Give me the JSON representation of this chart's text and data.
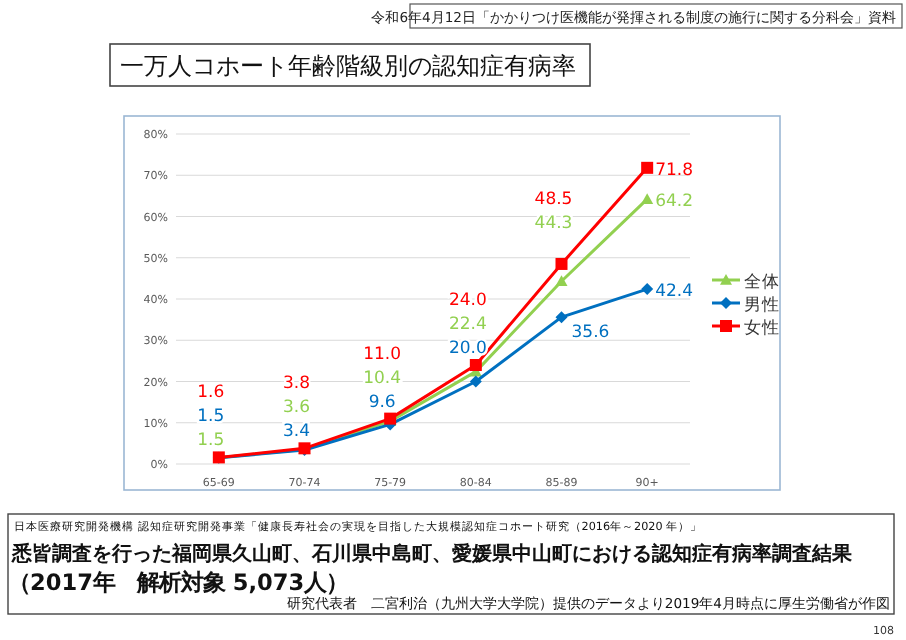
{
  "chart_data": {
    "type": "line",
    "title": "一万人コホート年齢階級別の認知症有病率",
    "categories": [
      "65-69",
      "70-74",
      "75-79",
      "80-84",
      "85-89",
      "90+"
    ],
    "series": [
      {
        "name": "全体",
        "color": "#92d050",
        "marker": "triangle",
        "values": [
          1.5,
          3.6,
          10.4,
          22.4,
          44.3,
          64.2
        ],
        "value_labels": [
          "1.5",
          "3.6",
          "10.4",
          "22.4",
          "44.3",
          "64.2"
        ]
      },
      {
        "name": "男性",
        "color": "#0070c0",
        "marker": "diamond",
        "values": [
          1.5,
          3.4,
          9.6,
          20.0,
          35.6,
          42.4
        ],
        "value_labels": [
          "1.5",
          "3.4",
          "9.6",
          "20.0",
          "35.6",
          "42.4"
        ]
      },
      {
        "name": "女性",
        "color": "#ff0000",
        "marker": "square",
        "values": [
          1.6,
          3.8,
          11.0,
          24.0,
          48.5,
          71.8
        ],
        "value_labels": [
          "1.6",
          "3.8",
          "11.0",
          "24.0",
          "48.5",
          "71.8"
        ]
      }
    ],
    "ylim": [
      0,
      80
    ],
    "yticks": [
      {
        "value": 0,
        "label": "0%"
      },
      {
        "value": 10,
        "label": "10%"
      },
      {
        "value": 20,
        "label": "20%"
      },
      {
        "value": 30,
        "label": "30%"
      },
      {
        "value": 40,
        "label": "40%"
      },
      {
        "value": 50,
        "label": "50%"
      },
      {
        "value": 60,
        "label": "60%"
      },
      {
        "value": 70,
        "label": "70%"
      },
      {
        "value": 80,
        "label": "80%"
      }
    ],
    "grid": "y",
    "legend": "right",
    "annotations": [
      "令和6年4月12日「かかりつけ医機能が発揮される制度の施行に関する分科会」資料",
      "日本医療研究開発機構 認知症研究開発事業「健康長寿社会の実現を目指した大規模認知症コホート研究（2016年～2020 年）」",
      "悉皆調査を行った福岡県久山町、石川県中島町、愛媛県中山町における認知症有病率調査結果",
      "（2017年　解析対象 5,073人）",
      "研究代表者　二宮利治（九州大学大学院）提供のデータより2019年4月時点に厚生労働省が作図",
      "108"
    ]
  }
}
